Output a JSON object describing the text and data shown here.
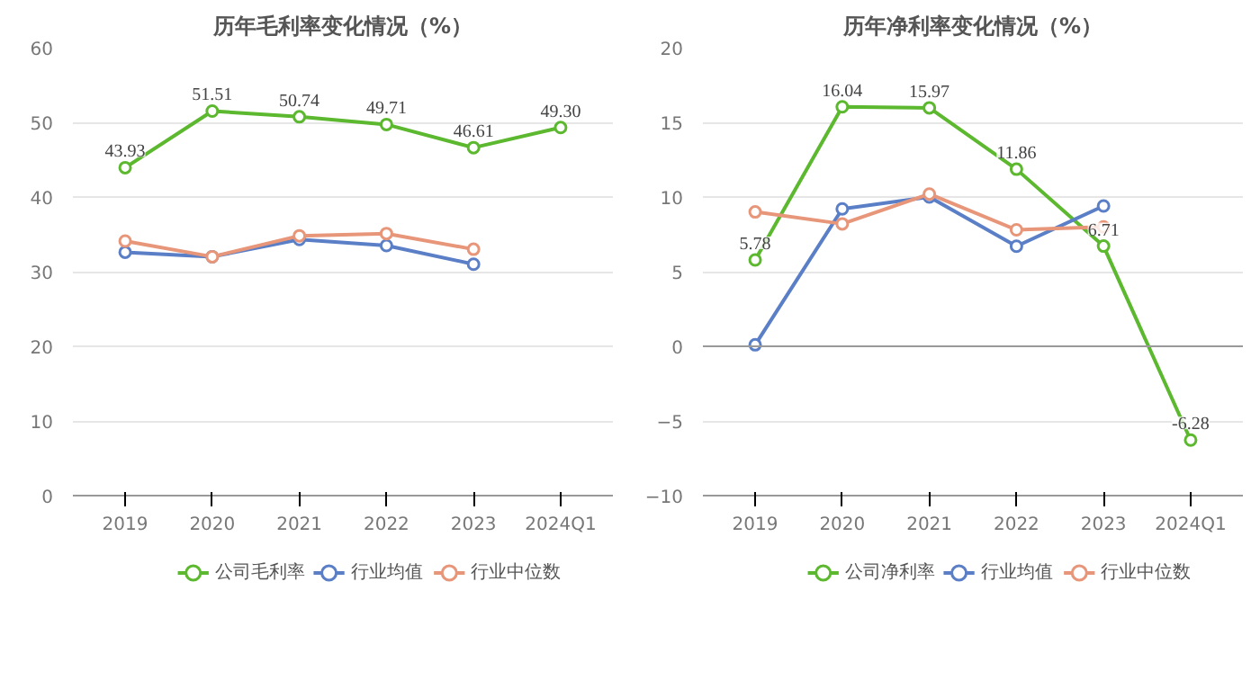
{
  "chart_data": [
    {
      "type": "line",
      "title": "历年毛利率变化情况（%）",
      "categories": [
        "2019",
        "2020",
        "2021",
        "2022",
        "2023",
        "2024Q1"
      ],
      "ylim": [
        0,
        60
      ],
      "yticks": [
        0,
        10,
        20,
        30,
        40,
        50,
        60
      ],
      "grid": "y",
      "legend": "bottom",
      "marker": "circle",
      "line_style": "solid",
      "series": [
        {
          "name": "公司毛利率",
          "color": "#5cb82e",
          "values": [
            43.93,
            51.51,
            50.74,
            49.71,
            46.61,
            49.3
          ],
          "value_labels": [
            "43.93",
            "51.51",
            "50.74",
            "49.71",
            "46.61",
            "49.30"
          ]
        },
        {
          "name": "行业均值",
          "color": "#5b7fc7",
          "values": [
            32.6,
            32.0,
            34.3,
            33.5,
            31.0,
            null
          ]
        },
        {
          "name": "行业中位数",
          "color": "#e8967a",
          "values": [
            34.1,
            32.0,
            34.8,
            35.1,
            33.0,
            null
          ]
        }
      ]
    },
    {
      "type": "line",
      "title": "历年净利率变化情况（%）",
      "categories": [
        "2019",
        "2020",
        "2021",
        "2022",
        "2023",
        "2024Q1"
      ],
      "ylim": [
        -10,
        20
      ],
      "yticks": [
        -10,
        -5,
        0,
        5,
        10,
        15,
        20
      ],
      "grid": "y",
      "legend": "bottom",
      "marker": "circle",
      "line_style": "solid",
      "series": [
        {
          "name": "公司净利率",
          "color": "#5cb82e",
          "values": [
            5.78,
            16.04,
            15.97,
            11.86,
            6.71,
            -6.28
          ],
          "value_labels": [
            "5.78",
            "16.04",
            "15.97",
            "11.86",
            "6.71",
            "-6.28"
          ]
        },
        {
          "name": "行业均值",
          "color": "#5b7fc7",
          "values": [
            0.1,
            9.2,
            10.0,
            6.7,
            9.4,
            null
          ]
        },
        {
          "name": "行业中位数",
          "color": "#e8967a",
          "values": [
            9.0,
            8.2,
            10.2,
            7.8,
            8.0,
            null
          ]
        }
      ]
    }
  ]
}
